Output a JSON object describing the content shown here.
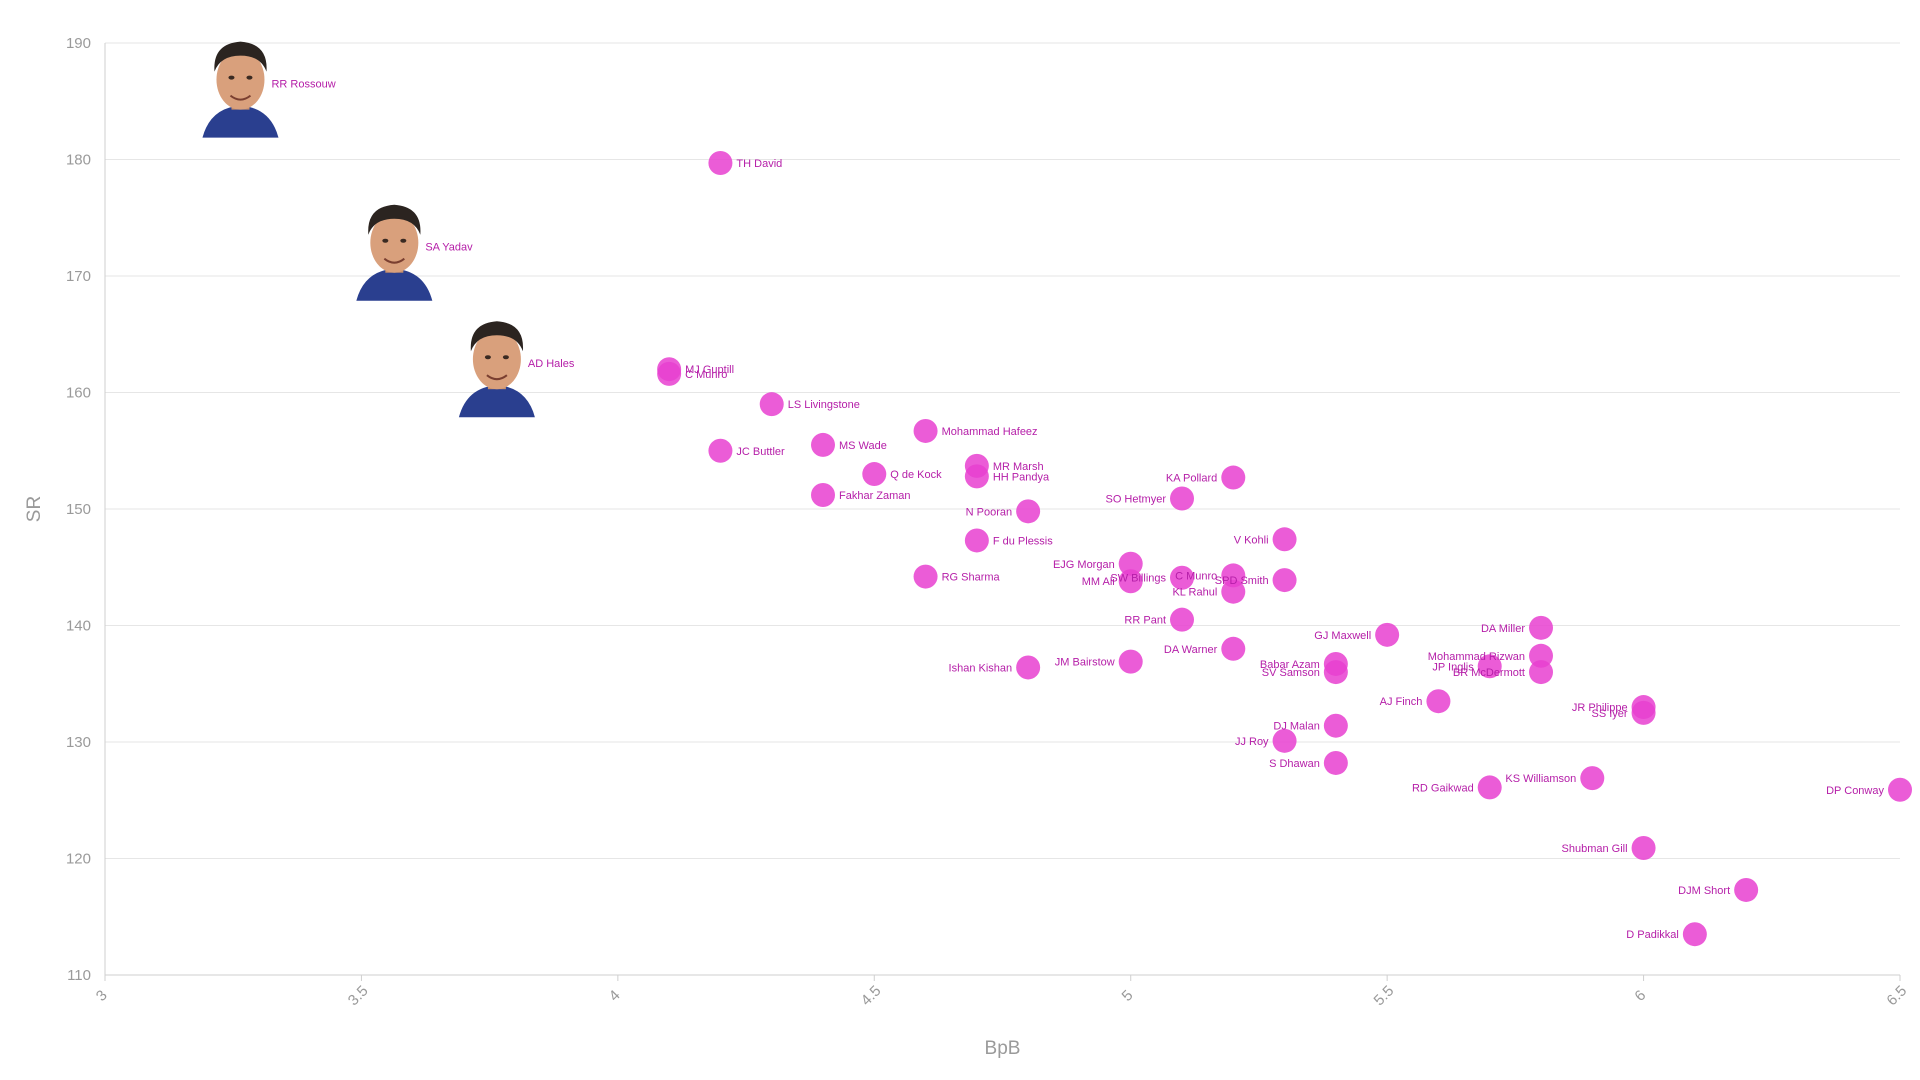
{
  "chart_data": {
    "type": "scatter",
    "xlabel": "BpB",
    "ylabel": "SR",
    "xlim": [
      3,
      6.5
    ],
    "ylim": [
      110,
      190
    ],
    "x_ticks": [
      "3",
      "3.5",
      "4",
      "4.5",
      "5",
      "5.5",
      "6",
      "6.5"
    ],
    "y_ticks": [
      "110",
      "120",
      "130",
      "140",
      "150",
      "160",
      "170",
      "180",
      "190"
    ],
    "grid": "horizontal",
    "point_color": "#e83fd0",
    "label_color": "#b51ea8",
    "points": [
      {
        "label": "RR Rossouw",
        "x": 3.27,
        "y": 186,
        "photo": "player-photo"
      },
      {
        "label": "SA Yadav",
        "x": 3.57,
        "y": 172,
        "photo": "player-photo"
      },
      {
        "label": "AD Hales",
        "x": 3.77,
        "y": 162,
        "photo": "player-photo"
      },
      {
        "label": "TH David",
        "x": 4.2,
        "y": 179.7
      },
      {
        "label": "MJ Guptill",
        "x": 4.1,
        "y": 162
      },
      {
        "label": "C Munro",
        "x": 4.1,
        "y": 161.6
      },
      {
        "label": "LS Livingstone",
        "x": 4.3,
        "y": 159
      },
      {
        "label": "JC Buttler",
        "x": 4.2,
        "y": 155
      },
      {
        "label": "MS Wade",
        "x": 4.4,
        "y": 155.5
      },
      {
        "label": "Mohammad Hafeez",
        "x": 4.6,
        "y": 156.7
      },
      {
        "label": "Q de Kock",
        "x": 4.5,
        "y": 153
      },
      {
        "label": "MR Marsh",
        "x": 4.7,
        "y": 153.7
      },
      {
        "label": "HH Pandya",
        "x": 4.7,
        "y": 152.8
      },
      {
        "label": "Fakhar Zaman",
        "x": 4.4,
        "y": 151.2
      },
      {
        "label": "N Pooran",
        "x": 4.8,
        "y": 149.8
      },
      {
        "label": "F du Plessis",
        "x": 4.7,
        "y": 147.3
      },
      {
        "label": "RG Sharma",
        "x": 4.6,
        "y": 144.2
      },
      {
        "label": "KA Pollard",
        "x": 5.2,
        "y": 152.7
      },
      {
        "label": "SO Hetmyer",
        "x": 5.1,
        "y": 150.9
      },
      {
        "label": "V Kohli",
        "x": 5.3,
        "y": 147.4
      },
      {
        "label": "EJG Morgan",
        "x": 5.0,
        "y": 145.3
      },
      {
        "label": "MM Ali",
        "x": 5.0,
        "y": 143.8
      },
      {
        "label": "SW Billings",
        "x": 5.1,
        "y": 144.1
      },
      {
        "label": "C Munro",
        "x": 5.2,
        "y": 144.3
      },
      {
        "label": "SPD Smith",
        "x": 5.3,
        "y": 143.9
      },
      {
        "label": "KL Rahul",
        "x": 5.2,
        "y": 142.9
      },
      {
        "label": "RR Pant",
        "x": 5.1,
        "y": 140.5
      },
      {
        "label": "DA Warner",
        "x": 5.2,
        "y": 138
      },
      {
        "label": "JM Bairstow",
        "x": 5.0,
        "y": 136.9
      },
      {
        "label": "Ishan Kishan",
        "x": 4.8,
        "y": 136.4
      },
      {
        "label": "GJ Maxwell",
        "x": 5.5,
        "y": 139.2
      },
      {
        "label": "Babar Azam",
        "x": 5.4,
        "y": 136.7
      },
      {
        "label": "SV Samson",
        "x": 5.4,
        "y": 136
      },
      {
        "label": "DA Miller",
        "x": 5.8,
        "y": 139.8
      },
      {
        "label": "Mohammad Rizwan",
        "x": 5.8,
        "y": 137.4
      },
      {
        "label": "JP Inglis",
        "x": 5.7,
        "y": 136.5
      },
      {
        "label": "BR McDermott",
        "x": 5.8,
        "y": 136
      },
      {
        "label": "AJ Finch",
        "x": 5.6,
        "y": 133.5
      },
      {
        "label": "JR Philippe",
        "x": 6.0,
        "y": 133
      },
      {
        "label": "SS Iyer",
        "x": 6.0,
        "y": 132.5
      },
      {
        "label": "DJ Malan",
        "x": 5.4,
        "y": 131.4
      },
      {
        "label": "JJ Roy",
        "x": 5.3,
        "y": 130.1
      },
      {
        "label": "S Dhawan",
        "x": 5.4,
        "y": 128.2
      },
      {
        "label": "KS Williamson",
        "x": 5.9,
        "y": 126.9
      },
      {
        "label": "RD Gaikwad",
        "x": 5.7,
        "y": 126.1
      },
      {
        "label": "DP Conway",
        "x": 6.5,
        "y": 125.9
      },
      {
        "label": "Shubman Gill",
        "x": 6.0,
        "y": 120.9
      },
      {
        "label": "DJM Short",
        "x": 6.2,
        "y": 117.3
      },
      {
        "label": "D Padikkal",
        "x": 6.1,
        "y": 113.5
      }
    ]
  }
}
